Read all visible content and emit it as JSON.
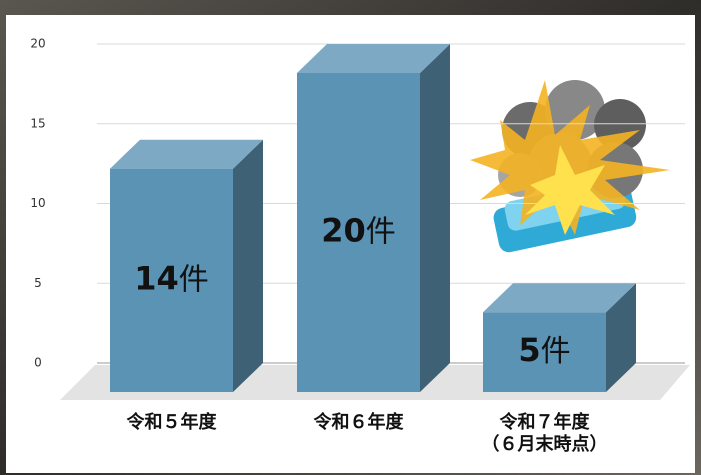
{
  "chart_data": {
    "type": "bar3d",
    "categories": [
      "令和５年度",
      "令和６年度",
      "令和７年度\n（６月末時点）"
    ],
    "values": [
      14,
      20,
      5
    ],
    "value_labels": [
      "14件",
      "20件",
      "5件"
    ],
    "color": "#5b93b5",
    "ylim": [
      0,
      20
    ],
    "yticks": [
      0,
      5,
      10,
      15,
      20
    ],
    "grid": true
  }
}
